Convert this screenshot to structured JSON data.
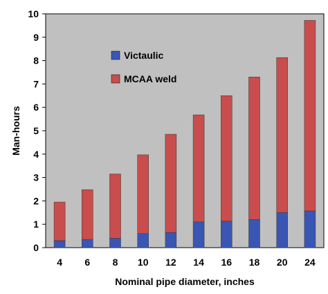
{
  "chart_data": {
    "type": "bar",
    "stacked": true,
    "categories": [
      "4",
      "6",
      "8",
      "10",
      "12",
      "14",
      "16",
      "18",
      "20",
      "24"
    ],
    "series": [
      {
        "name": "Victaulic",
        "color": "#3a56b4",
        "values": [
          0.3,
          0.35,
          0.4,
          0.6,
          0.65,
          1.1,
          1.13,
          1.2,
          1.5,
          1.57
        ]
      },
      {
        "name": "MCAA weld",
        "color": "#c94d4d",
        "values": [
          1.65,
          2.13,
          2.75,
          3.37,
          4.2,
          4.58,
          5.37,
          6.1,
          6.63,
          8.15
        ]
      }
    ],
    "xlabel": "Nominal pipe diameter, inches",
    "ylabel": "Man-hours",
    "ylim": [
      0,
      10
    ],
    "yticks": [
      "0",
      "1",
      "2",
      "3",
      "4",
      "5",
      "6",
      "7",
      "8",
      "9",
      "10"
    ],
    "grid": false,
    "legend_position": "top-left inside",
    "plot_background": "#c0c0c0"
  }
}
